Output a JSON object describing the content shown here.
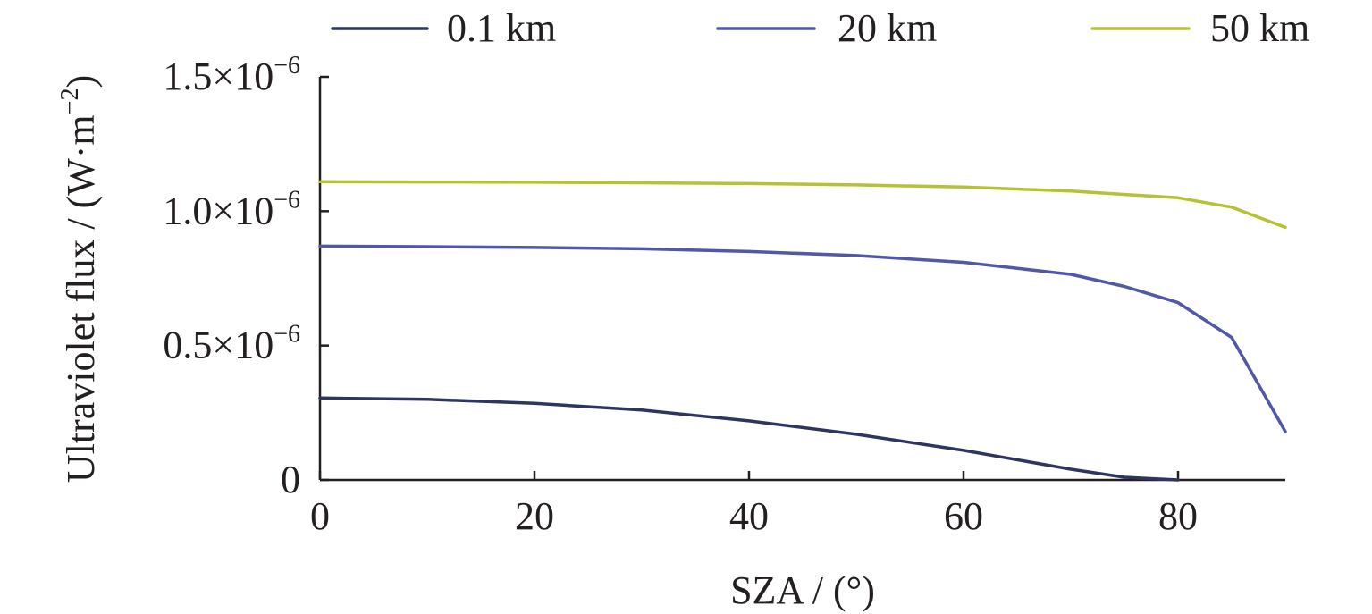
{
  "chart_data": {
    "type": "line",
    "xlabel": "SZA / (°)",
    "ylabel": {
      "text": "Ultraviolet flux / (W·m",
      "sup": "−2",
      "close": ")"
    },
    "xlim": [
      0,
      90
    ],
    "ylim": [
      0,
      1.5
    ],
    "xticks": [
      {
        "value": 0,
        "label": "0"
      },
      {
        "value": 20,
        "label": "20"
      },
      {
        "value": 40,
        "label": "40"
      },
      {
        "value": 60,
        "label": "60"
      },
      {
        "value": 80,
        "label": "80"
      }
    ],
    "yticks": [
      {
        "value": 0,
        "base": "0",
        "exp": ""
      },
      {
        "value": 0.5,
        "base": "0.5×10",
        "exp": "−6"
      },
      {
        "value": 1.0,
        "base": "1.0×10",
        "exp": "−6"
      },
      {
        "value": 1.5,
        "base": "1.5×10",
        "exp": "−6"
      }
    ],
    "y_scale_note": "values in units of 10^-6 W·m^-2",
    "legend_position": "top",
    "grid": false,
    "series": [
      {
        "name": "0.1 km",
        "color": "#2e3560",
        "x": [
          0,
          10,
          20,
          30,
          40,
          50,
          60,
          70,
          75,
          80
        ],
        "y": [
          0.305,
          0.3,
          0.285,
          0.26,
          0.22,
          0.17,
          0.11,
          0.04,
          0.01,
          0.0
        ]
      },
      {
        "name": "20 km",
        "color": "#5158a8",
        "x": [
          0,
          10,
          20,
          30,
          40,
          50,
          60,
          70,
          75,
          80,
          85,
          90
        ],
        "y": [
          0.87,
          0.868,
          0.865,
          0.86,
          0.85,
          0.835,
          0.81,
          0.765,
          0.72,
          0.66,
          0.53,
          0.18
        ]
      },
      {
        "name": "50 km",
        "color": "#b5c234",
        "x": [
          0,
          10,
          20,
          30,
          40,
          50,
          60,
          70,
          80,
          85,
          90
        ],
        "y": [
          1.11,
          1.109,
          1.108,
          1.106,
          1.103,
          1.098,
          1.09,
          1.075,
          1.05,
          1.015,
          0.94
        ]
      }
    ]
  }
}
